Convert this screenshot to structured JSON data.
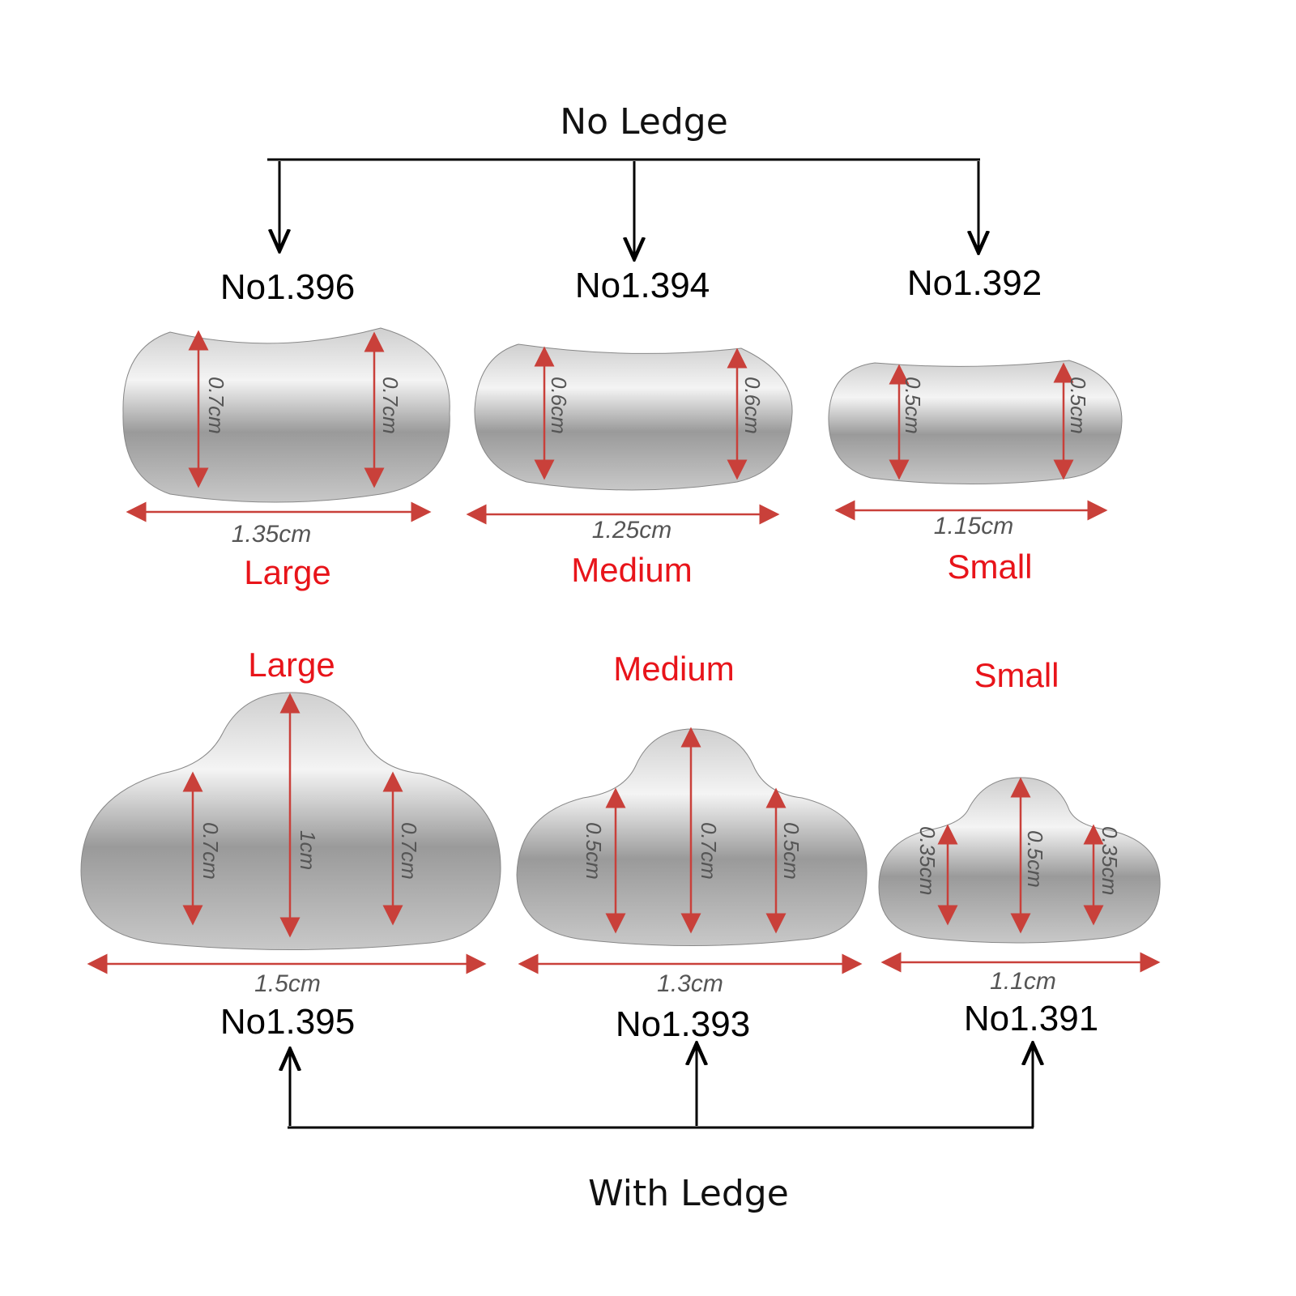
{
  "title_top": "No Ledge",
  "title_bottom": "With Ledge",
  "colors": {
    "size_label": "#e8141a",
    "arrow": "#c9403a",
    "connector": "#000000",
    "metal": "#a8a8a8"
  },
  "no_ledge": [
    {
      "code": "No1.396",
      "size": "Large",
      "width": "1.35cm",
      "height": "0.7cm"
    },
    {
      "code": "No1.394",
      "size": "Medium",
      "width": "1.25cm",
      "height": "0.6cm"
    },
    {
      "code": "No1.392",
      "size": "Small",
      "width": "1.15cm",
      "height": "0.5cm"
    }
  ],
  "with_ledge": [
    {
      "code": "No1.395",
      "size": "Large",
      "width": "1.5cm",
      "side_height": "0.7cm",
      "center_height": "1cm"
    },
    {
      "code": "No1.393",
      "size": "Medium",
      "width": "1.3cm",
      "side_height": "0.5cm",
      "center_height": "0.7cm"
    },
    {
      "code": "No1.391",
      "size": "Small",
      "width": "1.1cm",
      "side_height": "0.35cm",
      "center_height": "0.5cm"
    }
  ]
}
